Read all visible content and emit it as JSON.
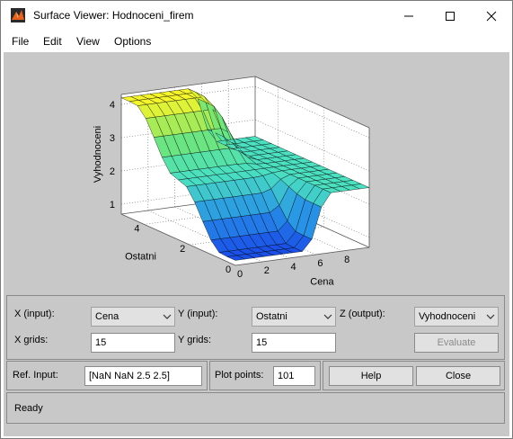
{
  "window": {
    "title": "Surface Viewer: Hodnoceni_firem"
  },
  "menu": [
    "File",
    "Edit",
    "View",
    "Options"
  ],
  "colors": {
    "figure_bg": "#c8c8c8",
    "surface_high": "#f5f52a",
    "surface_mid": "#4ae0c0",
    "surface_low": "#1a50e8"
  },
  "chart_data": {
    "type": "surface",
    "xlabel": "Cena",
    "ylabel": "Ostatni",
    "zlabel": "Vyhodnoceni",
    "x_ticks": [
      "0",
      "2",
      "4",
      "6",
      "8"
    ],
    "y_ticks": [
      "0",
      "2",
      "4"
    ],
    "z_ticks": [
      "1",
      "2",
      "3",
      "4"
    ],
    "xlim": [
      0,
      10
    ],
    "ylim": [
      0,
      5
    ],
    "zlim": [
      0.7,
      4.3
    ],
    "grid": true,
    "x_grids": 15,
    "y_grids": 15,
    "baseline_value": 2.5,
    "peak": {
      "x": 3.5,
      "y": 5,
      "value": 4.2
    },
    "valley": {
      "x": 0,
      "y": 0,
      "value": 0.85
    }
  },
  "controls": {
    "x_input_label": "X (input):",
    "x_input_value": "Cena",
    "y_input_label": "Y (input):",
    "y_input_value": "Ostatni",
    "z_output_label": "Z (output):",
    "z_output_value": "Vyhodnoceni",
    "x_grids_label": "X grids:",
    "x_grids_value": "15",
    "y_grids_label": "Y grids:",
    "y_grids_value": "15",
    "evaluate_label": "Evaluate",
    "ref_input_label": "Ref. Input:",
    "ref_input_value": "[NaN NaN 2.5 2.5]",
    "plot_points_label": "Plot points:",
    "plot_points_value": "101",
    "help_label": "Help",
    "close_label": "Close",
    "status": "Ready"
  }
}
